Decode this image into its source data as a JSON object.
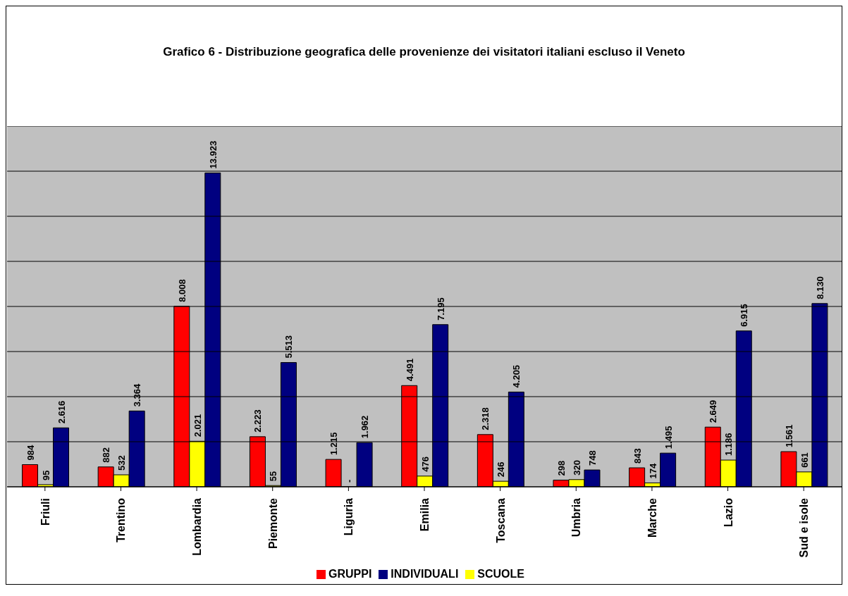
{
  "chart_data": {
    "type": "bar",
    "title": "Grafico 6 - Distribuzione geografica delle provenienze dei visitatori italiani escluso il Veneto",
    "categories": [
      "Friuli",
      "Trentino",
      "Lombardia",
      "Piemonte",
      "Liguria",
      "Emilia",
      "Toscana",
      "Umbria",
      "Marche",
      "Lazio",
      "Sud e isole"
    ],
    "series": [
      {
        "name": "GRUPPI",
        "color": "#ff0000",
        "values": [
          984,
          882,
          8008,
          2223,
          1215,
          4491,
          2318,
          298,
          843,
          2649,
          1561
        ],
        "value_labels": [
          "984",
          "882",
          "8.008",
          "2.223",
          "1.215",
          "4.491",
          "2.318",
          "298",
          "843",
          "2.649",
          "1.561"
        ]
      },
      {
        "name": "SCUOLE",
        "color": "#ffff00",
        "values": [
          95,
          532,
          2021,
          55,
          0,
          476,
          246,
          320,
          174,
          1186,
          661
        ],
        "value_labels": [
          "95",
          "532",
          "2.021",
          "55",
          "-",
          "476",
          "246",
          "320",
          "174",
          "1.186",
          "661"
        ]
      },
      {
        "name": "INDIVIDUALI",
        "color": "#000080",
        "values": [
          2616,
          3364,
          13923,
          5513,
          1962,
          7195,
          4205,
          748,
          1495,
          6915,
          8130
        ],
        "value_labels": [
          "2.616",
          "3.364",
          "13.923",
          "5.513",
          "1.962",
          "7.195",
          "4.205",
          "748",
          "1.495",
          "6.915",
          "8.130"
        ]
      }
    ],
    "ylim": [
      0,
      16000
    ],
    "yticks": [
      {
        "value": 0,
        "label": null
      },
      {
        "value": 2000,
        "label": null
      },
      {
        "value": 4000,
        "label": null
      },
      {
        "value": 6000,
        "label": null
      },
      {
        "value": 8000,
        "label": null
      },
      {
        "value": 10000,
        "label": null
      },
      {
        "value": 12000,
        "label": null
      },
      {
        "value": 14000,
        "label": null
      },
      {
        "value": 16000,
        "label": null
      }
    ],
    "tick_labels": "x",
    "grid": "y",
    "legend": "bottom"
  }
}
